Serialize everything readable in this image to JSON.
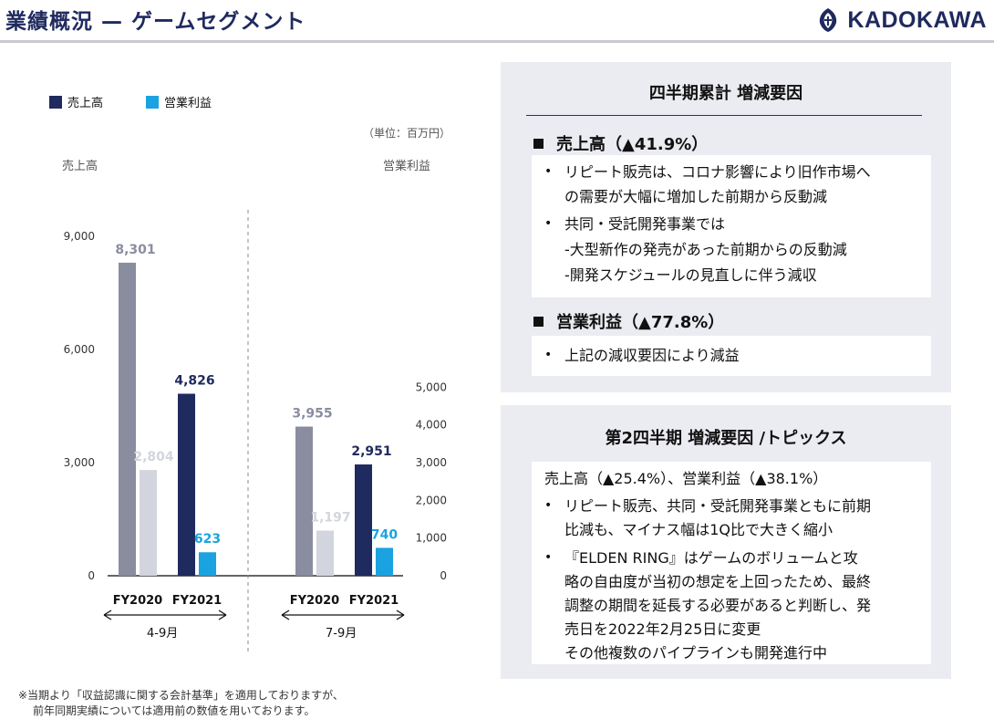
{
  "header": {
    "title": "業績概況 — ゲームセグメント",
    "brand": "KADOKAWA"
  },
  "legend": {
    "sales_label": "売上高",
    "profit_label": "営業利益"
  },
  "colors": {
    "sales_current": "#1f2a5e",
    "sales_prior": "#8a8da0",
    "profit_current": "#1aa3e0",
    "profit_prior": "#d3d5de"
  },
  "chart_data": {
    "type": "bar",
    "unit_label": "（単位：百万円）",
    "left_axis_title": "売上高",
    "right_axis_title": "営業利益",
    "left_ticks": [
      "0",
      "3,000",
      "6,000",
      "9,000"
    ],
    "right_ticks": [
      "0",
      "1,000",
      "2,000",
      "3,000",
      "4,000",
      "5,000"
    ],
    "left_ylim": [
      0,
      9000
    ],
    "right_ylim": [
      0,
      5000
    ],
    "categories": [
      "FY2020",
      "FY2021",
      "FY2020",
      "FY2021"
    ],
    "groups": [
      {
        "label": "4-9月",
        "bars": [
          {
            "year": "FY2020",
            "sales": 8301,
            "sales_label": "8,301",
            "profit": 2804,
            "profit_label": "2,804"
          },
          {
            "year": "FY2021",
            "sales": 4826,
            "sales_label": "4,826",
            "profit": 623,
            "profit_label": "623"
          }
        ]
      },
      {
        "label": "7-9月",
        "bars": [
          {
            "year": "FY2020",
            "sales": 3955,
            "sales_label": "3,955",
            "profit": 1197,
            "profit_label": "1,197"
          },
          {
            "year": "FY2021",
            "sales": 2951,
            "sales_label": "2,951",
            "profit": 740,
            "profit_label": "740"
          }
        ]
      }
    ]
  },
  "footnote": {
    "line1": "※当期より「収益認識に関する会計基準」を適用しておりますが、",
    "line2": "前年同期実績については適用前の数値を用いております。"
  },
  "panel1": {
    "title": "四半期累計 増減要因",
    "sales_head": "売上高（▲41.9%）",
    "sales_items": [
      "リピート販売は、コロナ影響により旧作市場へ",
      "の需要が大幅に増加した前期から反動減",
      "共同・受託開発事業では",
      "-大型新作の発売があった前期からの反動減",
      "-開発スケジュールの見直しに伴う減収"
    ],
    "profit_head": "営業利益（▲77.8%）",
    "profit_items": [
      "上記の減収要因により減益"
    ]
  },
  "panel2": {
    "title": "第2四半期 増減要因 /トピックス",
    "summary": "売上高（▲25.4%）、営業利益（▲38.1%）",
    "items": [
      "リピート販売、共同・受託開発事業ともに前期",
      "比減も、マイナス幅は1Q比で大きく縮小",
      "『ELDEN RING』はゲームのボリュームと攻",
      "略の自由度が当初の想定を上回ったため、最終",
      "調整の期間を延長する必要があると判断し、発",
      "売日を2022年2月25日に変更",
      "その他複数のパイプラインも開発進行中"
    ]
  }
}
